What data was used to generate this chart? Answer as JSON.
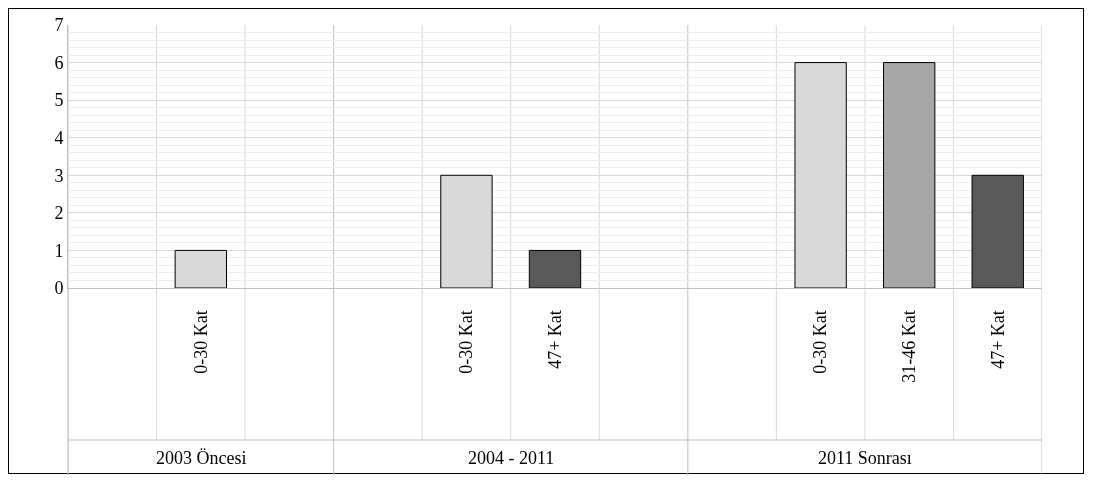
{
  "chart_data": {
    "type": "bar",
    "categories": [
      null,
      "0-30 Kat",
      null,
      null,
      "0-30 Kat",
      "47+ Kat",
      null,
      null,
      "0-30 Kat",
      "31-46 Kat",
      "47+ Kat"
    ],
    "values": [
      null,
      1,
      null,
      null,
      3,
      1,
      null,
      null,
      6,
      6,
      3
    ],
    "colors": [
      "#d9d9d9",
      "#d9d9d9",
      "#d9d9d9",
      "#d9d9d9",
      "#d9d9d9",
      "#595959",
      "#d9d9d9",
      "#d9d9d9",
      "#d9d9d9",
      "#a6a6a6",
      "#595959"
    ],
    "annotations": [
      "2003 Öncesi",
      "2004 - 2011",
      "2011 Sonrası"
    ],
    "ylim": [
      0,
      7
    ],
    "yticks": [
      0,
      1,
      2,
      3,
      4,
      5,
      6,
      7
    ],
    "grid": true
  }
}
